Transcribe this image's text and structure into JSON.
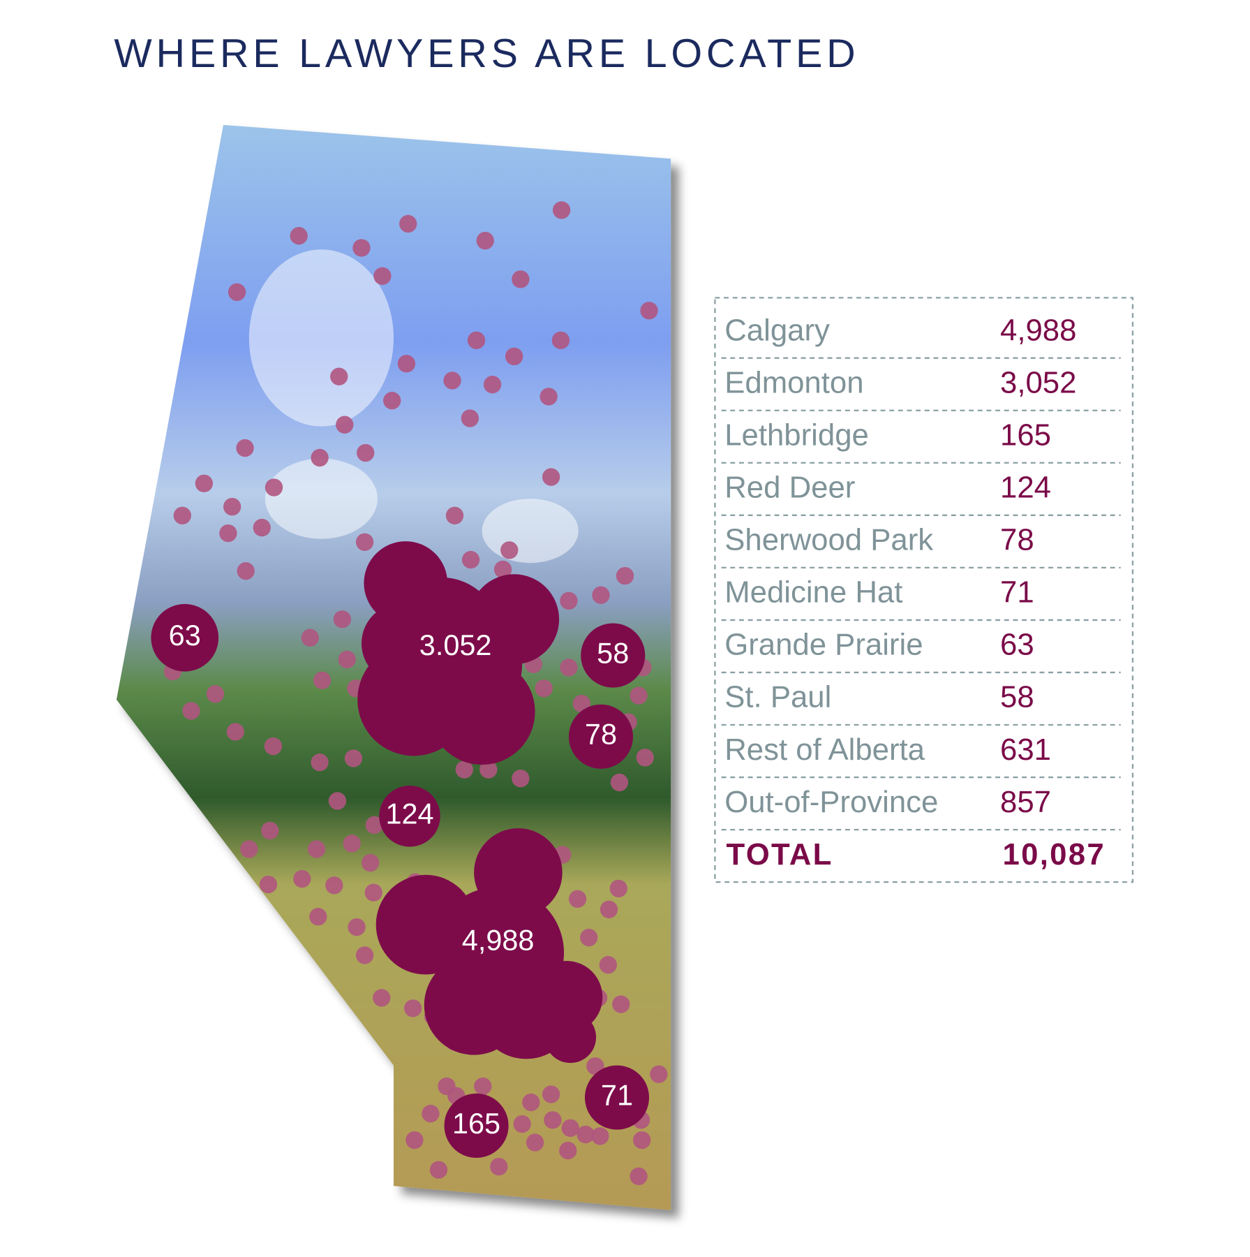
{
  "title": "WHERE LAWYERS ARE LOCATED",
  "map": {
    "bubbles": [
      {
        "label": "3.052"
      },
      {
        "label": "4,988"
      },
      {
        "label": "63"
      },
      {
        "label": "58"
      },
      {
        "label": "78"
      },
      {
        "label": "124"
      },
      {
        "label": "71"
      },
      {
        "label": "165"
      }
    ]
  },
  "table": {
    "rows": [
      [
        "Calgary",
        "4,988"
      ],
      [
        "Edmonton",
        "3,052"
      ],
      [
        "Lethbridge",
        "165"
      ],
      [
        "Red Deer",
        "124"
      ],
      [
        "Sherwood Park",
        "78"
      ],
      [
        "Medicine Hat",
        "71"
      ],
      [
        "Grande Prairie",
        "63"
      ],
      [
        "St. Paul",
        "58"
      ],
      [
        "Rest of Alberta",
        "631"
      ],
      [
        "Out-of-Province",
        "857"
      ]
    ],
    "total": [
      "TOTAL",
      "10,087"
    ]
  }
}
